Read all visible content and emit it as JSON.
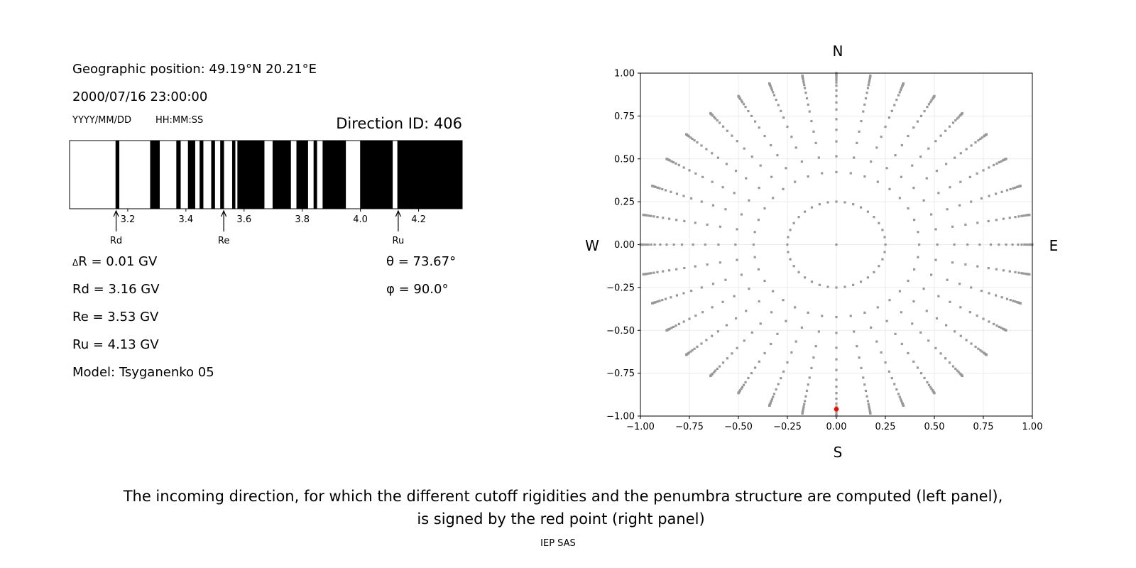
{
  "info": {
    "geo_position": "Geographic position: 49.19°N 20.21°E",
    "datetime": "2000/07/16 23:00:00",
    "date_format": "YYYY/MM/DD",
    "time_format": "HH:MM:SS",
    "direction_id": "Direction ID: 406",
    "delta_r": "R = 0.01 GV",
    "delta_symbol": "Δ",
    "rd": "Rd = 3.16 GV",
    "re": "Re = 3.53 GV",
    "ru": "Ru = 4.13 GV",
    "model": "Model: Tsyganenko 05",
    "theta": "θ = 73.67°",
    "phi": "φ = 90.0°"
  },
  "caption": {
    "line1": "The incoming direction, for which the different cutoff rigidities and the penumbra structure are computed (left panel),",
    "line2": "is signed by the red point (right panel)",
    "credit": "IEP SAS"
  },
  "chart_data": [
    {
      "type": "bar",
      "description_role": "penumbra",
      "xlim": [
        3.0,
        4.35
      ],
      "xticks": [
        3.2,
        3.4,
        3.6,
        3.8,
        4.0,
        4.2
      ],
      "xtick_labels": [
        "3.2",
        "3.4",
        "3.6",
        "3.8",
        "4.0",
        "4.2"
      ],
      "colors": {
        "forbidden": "#000000",
        "allowed": "#ffffff"
      },
      "forbidden_segments": [
        [
          3.158,
          3.171
        ],
        [
          3.277,
          3.31
        ],
        [
          3.367,
          3.382
        ],
        [
          3.407,
          3.432
        ],
        [
          3.447,
          3.46
        ],
        [
          3.487,
          3.5
        ],
        [
          3.518,
          3.531
        ],
        [
          3.559,
          3.57
        ],
        [
          3.577,
          3.67
        ],
        [
          3.698,
          3.761
        ],
        [
          3.78,
          3.82
        ],
        [
          3.839,
          3.851
        ],
        [
          3.87,
          3.95
        ],
        [
          3.999,
          4.111
        ],
        [
          4.127,
          4.35
        ]
      ],
      "markers": [
        {
          "label": "Rd",
          "value": 3.16
        },
        {
          "label": "Re",
          "value": 3.53
        },
        {
          "label": "Ru",
          "value": 4.13
        }
      ]
    },
    {
      "type": "scatter",
      "xlim": [
        -1.0,
        1.0
      ],
      "ylim": [
        -1.0,
        1.0
      ],
      "xticks": [
        "−1.00",
        "−0.75",
        "−0.50",
        "−0.25",
        "0.00",
        "0.25",
        "0.50",
        "0.75",
        "1.00"
      ],
      "yticks": [
        "1.00",
        "0.75",
        "0.50",
        "0.25",
        "0.00",
        "−0.25",
        "−0.50",
        "−0.75",
        "−1.00"
      ],
      "grid": true,
      "directions": {
        "top": "N",
        "bottom": "S",
        "left": "W",
        "right": "E"
      },
      "point_color": "#999999",
      "highlight_color": "#ff0000",
      "grid_center": true,
      "inner_ring": {
        "zenith_deg": 14.5,
        "azimuth_step_deg": 10
      },
      "spokes": {
        "azimuth_step_deg": 10,
        "zenith_deg": [
          25,
          31,
          37,
          42,
          47,
          52,
          56,
          60,
          64,
          68,
          71,
          73.67,
          76,
          79,
          81,
          83,
          85,
          87,
          88.5,
          90
        ]
      },
      "highlight": {
        "zenith_deg": 73.67,
        "azimuth_deg": 90.0,
        "x": 0.0,
        "y": -0.96
      }
    }
  ]
}
